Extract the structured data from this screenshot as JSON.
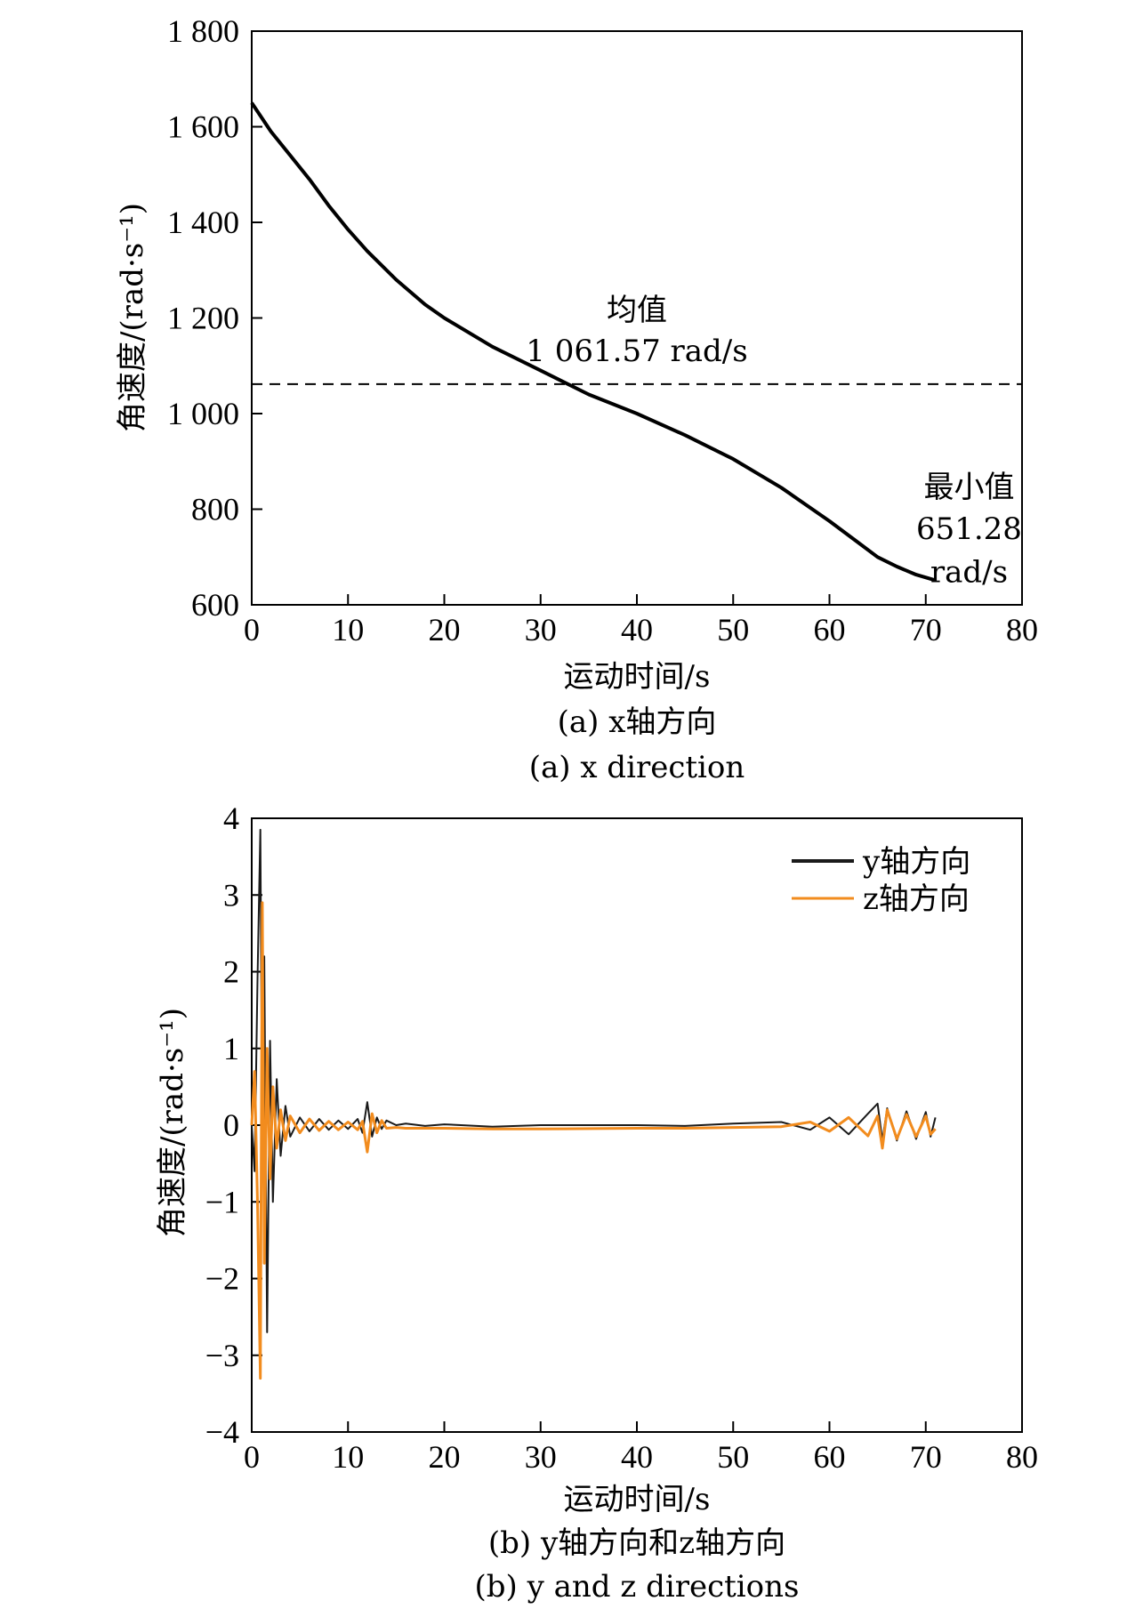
{
  "chart_data": [
    {
      "type": "line",
      "xlabel": "运动时间/s",
      "ylabel": "角速度/(rad·s⁻¹)",
      "xlim": [
        0,
        80
      ],
      "ylim": [
        600,
        1800
      ],
      "xticks": [
        0,
        10,
        20,
        30,
        40,
        50,
        60,
        70,
        80
      ],
      "xtick_labels": [
        "0",
        "10",
        "20",
        "30",
        "40",
        "50",
        "60",
        "70",
        "80"
      ],
      "yticks": [
        600,
        800,
        1000,
        1200,
        1400,
        1600,
        1800
      ],
      "ytick_labels": [
        "600",
        "800",
        "1 000",
        "1 200",
        "1 400",
        "1 600",
        "1 800"
      ],
      "caption_cn": "(a) x轴方向",
      "caption_en": "(a) x direction",
      "series": [
        {
          "color": "#000000",
          "x": [
            0,
            2,
            4,
            6,
            8,
            10,
            12,
            15,
            18,
            20,
            25,
            30,
            35,
            40,
            45,
            50,
            55,
            60,
            63,
            65,
            67,
            69,
            71
          ],
          "y": [
            1650,
            1590,
            1540,
            1490,
            1435,
            1385,
            1340,
            1280,
            1228,
            1200,
            1140,
            1090,
            1040,
            1000,
            955,
            905,
            845,
            775,
            730,
            700,
            680,
            663,
            651.28
          ]
        }
      ],
      "mean_line": {
        "value": 1061.57,
        "style": "dashed"
      },
      "annotations": [
        {
          "text": "均值",
          "x": 40,
          "y": 1195
        },
        {
          "text": "1 061.57 rad/s",
          "x": 40,
          "y": 1110
        },
        {
          "text": "最小值",
          "x": 74.5,
          "y": 825
        },
        {
          "text": "651.28",
          "x": 74.5,
          "y": 738
        },
        {
          "text": "rad/s",
          "x": 74.5,
          "y": 647
        }
      ]
    },
    {
      "type": "line",
      "xlabel": "运动时间/s",
      "ylabel": "角速度/(rad·s⁻¹)",
      "xlim": [
        0,
        80
      ],
      "ylim": [
        -4,
        4
      ],
      "xticks": [
        0,
        10,
        20,
        30,
        40,
        50,
        60,
        70,
        80
      ],
      "xtick_labels": [
        "0",
        "10",
        "20",
        "30",
        "40",
        "50",
        "60",
        "70",
        "80"
      ],
      "yticks": [
        -4,
        -3,
        -2,
        -1,
        0,
        1,
        2,
        3,
        4
      ],
      "ytick_labels": [
        "−4",
        "−3",
        "−2",
        "−1",
        "0",
        "1",
        "2",
        "3",
        "4"
      ],
      "caption_cn": "(b) y轴方向和z轴方向",
      "caption_en": "(b) y and z directions",
      "legend": "top-right",
      "series": [
        {
          "name": "y轴方向",
          "color": "#1a1a1a",
          "x": [
            0,
            0.3,
            0.6,
            0.9,
            1.1,
            1.3,
            1.6,
            1.9,
            2.2,
            2.6,
            3.0,
            3.5,
            4.0,
            5,
            6,
            7,
            8,
            9,
            10,
            11,
            11.5,
            12,
            12.5,
            13,
            13.5,
            14,
            15,
            16,
            18,
            20,
            25,
            30,
            40,
            45,
            50,
            55,
            58,
            60,
            62,
            64,
            65,
            65.5,
            66,
            67,
            68,
            69,
            70,
            70.5,
            71
          ],
          "y": [
            0,
            -0.6,
            1.9,
            3.85,
            -0.4,
            2.2,
            -2.7,
            1.1,
            -1.0,
            0.6,
            -0.4,
            0.25,
            -0.15,
            0.1,
            -0.08,
            0.08,
            -0.06,
            0.06,
            -0.05,
            0.08,
            -0.1,
            0.3,
            -0.15,
            0.1,
            -0.05,
            0.06,
            0.0,
            0.02,
            -0.01,
            0.01,
            -0.02,
            0.0,
            0.0,
            -0.01,
            0.02,
            0.04,
            -0.06,
            0.1,
            -0.12,
            0.15,
            0.28,
            -0.2,
            0.22,
            -0.2,
            0.18,
            -0.18,
            0.17,
            -0.15,
            0.1
          ]
        },
        {
          "name": "z轴方向",
          "color": "#f28c1e",
          "x": [
            0,
            0.3,
            0.6,
            0.9,
            1.1,
            1.3,
            1.6,
            1.9,
            2.2,
            2.6,
            3.0,
            3.5,
            4.0,
            5,
            6,
            7,
            8,
            9,
            10,
            11,
            11.5,
            12,
            12.5,
            13,
            13.5,
            14,
            15,
            16,
            18,
            20,
            25,
            30,
            40,
            45,
            50,
            55,
            58,
            60,
            62,
            64,
            65,
            65.5,
            66,
            67,
            68,
            69,
            70,
            70.5,
            71
          ],
          "y": [
            0,
            0.7,
            -1.0,
            -3.3,
            2.9,
            -1.8,
            1.0,
            -0.7,
            0.5,
            -0.3,
            0.2,
            -0.2,
            0.12,
            -0.1,
            0.08,
            -0.07,
            0.05,
            -0.06,
            0.04,
            -0.06,
            0.05,
            -0.35,
            0.15,
            -0.1,
            0.06,
            -0.04,
            -0.03,
            -0.04,
            -0.04,
            -0.04,
            -0.05,
            -0.05,
            -0.04,
            -0.04,
            -0.03,
            -0.02,
            0.04,
            -0.08,
            0.1,
            -0.14,
            0.12,
            -0.3,
            0.2,
            -0.18,
            0.14,
            -0.15,
            0.12,
            -0.12,
            -0.05
          ]
        }
      ]
    }
  ]
}
